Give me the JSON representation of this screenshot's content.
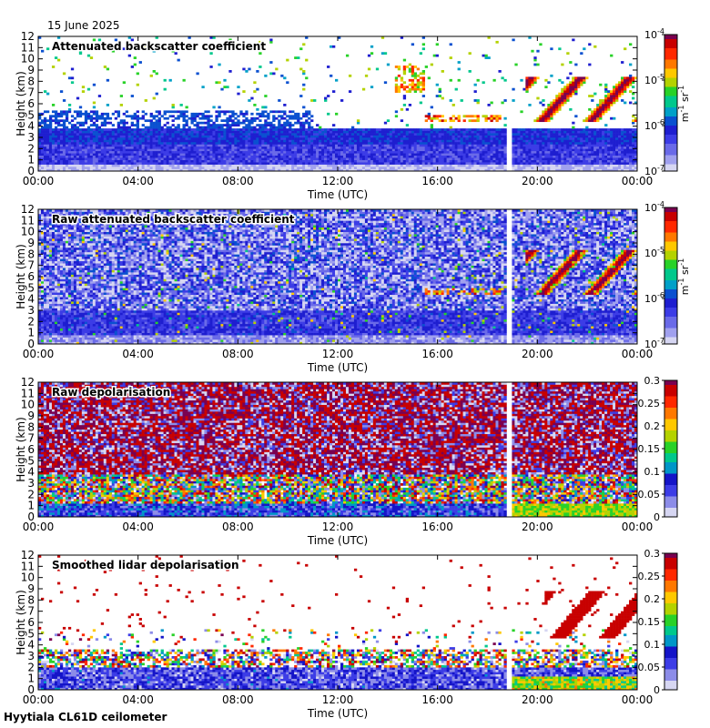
{
  "header": {
    "date": "15 June 2025"
  },
  "footer": {
    "site": "Hyytiala CL61D ceilometer"
  },
  "chart_data": [
    {
      "type": "heatmap",
      "title": "Attenuated backscatter coefficient",
      "xlabel": "Time (UTC)",
      "ylabel": "Height (km)",
      "xticks": [
        "00:00",
        "04:00",
        "08:00",
        "12:00",
        "16:00",
        "20:00",
        "00:00"
      ],
      "xlim": [
        0,
        24
      ],
      "yticks": [
        0,
        1,
        2,
        3,
        4,
        5,
        6,
        7,
        8,
        9,
        10,
        11,
        12
      ],
      "ylim": [
        0,
        12
      ],
      "colorbar": {
        "scale": "log",
        "min": 1e-07,
        "max": 0.0001,
        "ticks": [
          {
            "value": 0.0001,
            "base": "10",
            "exp": "-4"
          },
          {
            "value": 1e-05,
            "base": "10",
            "exp": "-5"
          },
          {
            "value": 1e-06,
            "base": "10",
            "exp": "-6"
          },
          {
            "value": 1e-07,
            "base": "10",
            "exp": "-7"
          }
        ],
        "unit_m": "m",
        "unit_m_exp": "-1",
        "unit_sr": " sr",
        "unit_sr_exp": "-1"
      },
      "data_gap_hours": [
        18.75,
        19.0
      ],
      "colors": [
        "#ffffff",
        "#d4d4f0",
        "#7373e6",
        "#2f2fe6",
        "#1414c8",
        "#00aac8",
        "#00c87a",
        "#28d228",
        "#c8d200",
        "#ffa000",
        "#ff3c00",
        "#c80000",
        "#800060"
      ]
    },
    {
      "type": "heatmap",
      "title": "Raw attenuated backscatter coefficient",
      "xlabel": "Time (UTC)",
      "ylabel": "Height (km)",
      "xticks": [
        "00:00",
        "04:00",
        "08:00",
        "12:00",
        "16:00",
        "20:00",
        "00:00"
      ],
      "xlim": [
        0,
        24
      ],
      "yticks": [
        0,
        1,
        2,
        3,
        4,
        5,
        6,
        7,
        8,
        9,
        10,
        11,
        12
      ],
      "ylim": [
        0,
        12
      ],
      "colorbar": {
        "scale": "log",
        "min": 1e-07,
        "max": 0.0001,
        "ticks": [
          {
            "value": 0.0001,
            "base": "10",
            "exp": "-4"
          },
          {
            "value": 1e-05,
            "base": "10",
            "exp": "-5"
          },
          {
            "value": 1e-06,
            "base": "10",
            "exp": "-6"
          },
          {
            "value": 1e-07,
            "base": "10",
            "exp": "-7"
          }
        ],
        "unit_m": "m",
        "unit_m_exp": "-1",
        "unit_sr": " sr",
        "unit_sr_exp": "-1"
      },
      "data_gap_hours": [
        18.75,
        19.0
      ]
    },
    {
      "type": "heatmap",
      "title": "Raw depolarisation",
      "xlabel": "Time (UTC)",
      "ylabel": "Height (km)",
      "xticks": [
        "00:00",
        "04:00",
        "08:00",
        "12:00",
        "16:00",
        "20:00",
        "00:00"
      ],
      "xlim": [
        0,
        24
      ],
      "yticks": [
        0,
        1,
        2,
        3,
        4,
        5,
        6,
        7,
        8,
        9,
        10,
        11,
        12
      ],
      "ylim": [
        0,
        12
      ],
      "colorbar": {
        "scale": "linear",
        "min": 0,
        "max": 0.3,
        "ticks": [
          {
            "value": 0.3,
            "label": "0.3"
          },
          {
            "value": 0.25,
            "label": "0.25"
          },
          {
            "value": 0.2,
            "label": "0.2"
          },
          {
            "value": 0.15,
            "label": "0.15"
          },
          {
            "value": 0.1,
            "label": "0.1"
          },
          {
            "value": 0.05,
            "label": "0.05"
          },
          {
            "value": 0,
            "label": "0"
          }
        ]
      },
      "data_gap_hours": [
        18.75,
        19.0
      ]
    },
    {
      "type": "heatmap",
      "title": "Smoothed lidar depolarisation",
      "xlabel": "Time (UTC)",
      "ylabel": "Height (km)",
      "xticks": [
        "00:00",
        "04:00",
        "08:00",
        "12:00",
        "16:00",
        "20:00",
        "00:00"
      ],
      "xlim": [
        0,
        24
      ],
      "yticks": [
        0,
        1,
        2,
        3,
        4,
        5,
        6,
        7,
        8,
        9,
        10,
        11,
        12
      ],
      "ylim": [
        0,
        12
      ],
      "colorbar": {
        "scale": "linear",
        "min": 0,
        "max": 0.3,
        "ticks": [
          {
            "value": 0.3,
            "label": "0.3"
          },
          {
            "value": 0.25,
            "label": "0.25"
          },
          {
            "value": 0.2,
            "label": "0.2"
          },
          {
            "value": 0.15,
            "label": "0.15"
          },
          {
            "value": 0.1,
            "label": "0.1"
          },
          {
            "value": 0.05,
            "label": "0.05"
          },
          {
            "value": 0,
            "label": "0"
          }
        ]
      },
      "data_gap_hours": [
        18.75,
        19.0
      ]
    }
  ]
}
